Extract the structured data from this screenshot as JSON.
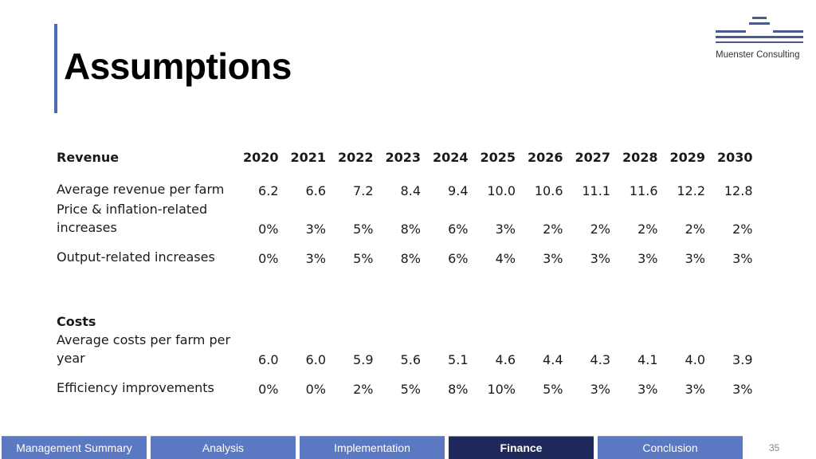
{
  "slide": {
    "title": "Assumptions",
    "page_number": "35",
    "brand": "Muenster Consulting"
  },
  "table": {
    "revenue_heading": "Revenue",
    "years": [
      "2020",
      "2021",
      "2022",
      "2023",
      "2024",
      "2025",
      "2026",
      "2027",
      "2028",
      "2029",
      "2030"
    ],
    "revenue_rows": [
      {
        "label": "Average revenue per farm",
        "values": [
          "6.2",
          "6.6",
          "7.2",
          "8.4",
          "9.4",
          "10.0",
          "10.6",
          "11.1",
          "11.6",
          "12.2",
          "12.8"
        ]
      },
      {
        "label_line1": "Price & inflation-related",
        "label_line2": "increases",
        "values": [
          "0%",
          "3%",
          "5%",
          "8%",
          "6%",
          "3%",
          "2%",
          "2%",
          "2%",
          "2%",
          "2%"
        ]
      },
      {
        "label": "Output-related increases",
        "values": [
          "0%",
          "3%",
          "5%",
          "8%",
          "6%",
          "4%",
          "3%",
          "3%",
          "3%",
          "3%",
          "3%"
        ]
      }
    ],
    "costs_heading": "Costs",
    "cost_rows": [
      {
        "label_line1": "Average costs per farm per",
        "label_line2": "year",
        "values": [
          "6.0",
          "6.0",
          "5.9",
          "5.6",
          "5.1",
          "4.6",
          "4.4",
          "4.3",
          "4.1",
          "4.0",
          "3.9"
        ]
      },
      {
        "label": "Efficiency improvements",
        "values": [
          "0%",
          "0%",
          "2%",
          "5%",
          "8%",
          "10%",
          "5%",
          "3%",
          "3%",
          "3%",
          "3%"
        ]
      }
    ]
  },
  "footer": {
    "tabs": [
      {
        "label": "Management Summary",
        "active": false
      },
      {
        "label": "Analysis",
        "active": false
      },
      {
        "label": "Implementation",
        "active": false
      },
      {
        "label": "Finance",
        "active": true
      },
      {
        "label": "Conclusion",
        "active": false
      }
    ]
  },
  "colors": {
    "accent": "#4a6cb3",
    "tab": "#5b79c2",
    "tab_active": "#1f2a5a"
  }
}
